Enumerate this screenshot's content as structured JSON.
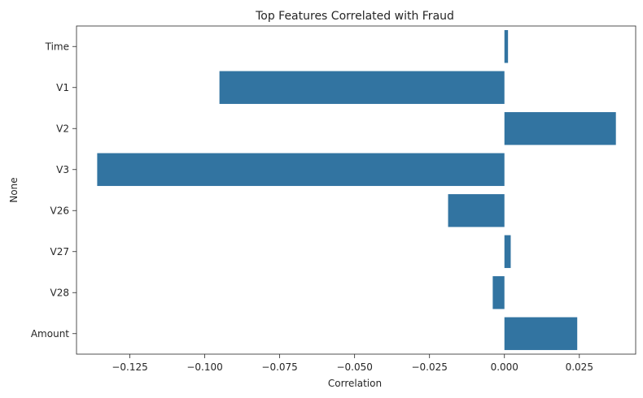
{
  "chart_data": {
    "type": "bar",
    "orientation": "horizontal",
    "title": "Top Features Correlated with Fraud",
    "xlabel": "Correlation",
    "ylabel": "None",
    "categories": [
      "Time",
      "V1",
      "V2",
      "V3",
      "V26",
      "V27",
      "V28",
      "Amount"
    ],
    "values": [
      0.0012,
      -0.0951,
      0.0372,
      -0.1359,
      -0.0188,
      0.0021,
      -0.0039,
      0.0243
    ],
    "xlim": [
      -0.1428,
      0.0438
    ],
    "xticks": [
      -0.125,
      -0.1,
      -0.075,
      -0.05,
      -0.025,
      0.0,
      0.025
    ],
    "xtick_labels": [
      "−0.125",
      "−0.100",
      "−0.075",
      "−0.050",
      "−0.025",
      "0.000",
      "0.025"
    ],
    "bar_color": "#3274a1",
    "grid": false,
    "legend": "none"
  }
}
